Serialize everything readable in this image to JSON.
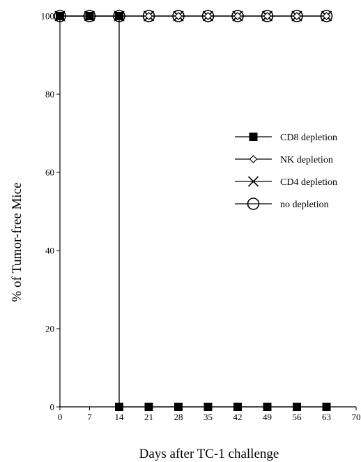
{
  "chart_data": {
    "type": "line",
    "title": "",
    "xlabel": "Days after TC-1 challenge",
    "ylabel": "% of Tumor-free Mice",
    "xlim": [
      0,
      70
    ],
    "ylim": [
      0,
      100
    ],
    "xticks": [
      0,
      7,
      14,
      21,
      28,
      35,
      42,
      49,
      56,
      63,
      70
    ],
    "yticks": [
      0,
      20,
      40,
      60,
      80,
      100
    ],
    "grid": false,
    "legend_position": "right",
    "series": [
      {
        "name": "CD8 depletion",
        "marker": "filled-square",
        "x": [
          0,
          7,
          14,
          14,
          21,
          28,
          35,
          42,
          49,
          56,
          63
        ],
        "y": [
          100,
          100,
          100,
          0,
          0,
          0,
          0,
          0,
          0,
          0,
          0
        ]
      },
      {
        "name": "NK depletion",
        "marker": "open-diamond",
        "x": [
          0,
          7,
          14,
          21,
          28,
          35,
          42,
          49,
          56,
          63
        ],
        "y": [
          100,
          100,
          100,
          100,
          100,
          100,
          100,
          100,
          100,
          100
        ]
      },
      {
        "name": "CD4 depletion",
        "marker": "x-cross",
        "x": [
          0,
          7,
          14,
          21,
          28,
          35,
          42,
          49,
          56,
          63
        ],
        "y": [
          100,
          100,
          100,
          100,
          100,
          100,
          100,
          100,
          100,
          100
        ]
      },
      {
        "name": "no depletion",
        "marker": "open-circle",
        "x": [
          0,
          7,
          14,
          21,
          28,
          35,
          42,
          49,
          56,
          63
        ],
        "y": [
          100,
          100,
          100,
          100,
          100,
          100,
          100,
          100,
          100,
          100
        ]
      }
    ]
  }
}
